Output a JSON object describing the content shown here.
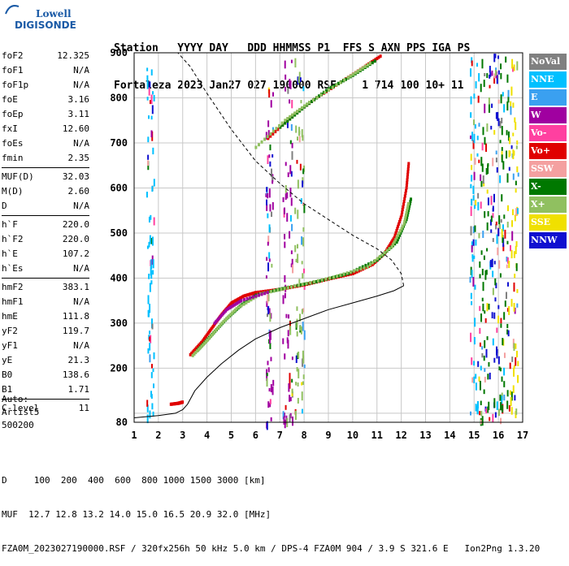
{
  "logo": {
    "line1": "Lowell",
    "line2": "DIGISONDE"
  },
  "header": {
    "line1": "Station   YYYY DAY   DDD HHMMSS P1  FFS S AXN PPS IGA PS",
    "line2": "Fortaleza 2023 Jan27 027 190000 RSF    1 714 100 10+ 11"
  },
  "params": {
    "group1": [
      {
        "name": "foF2",
        "value": "12.325"
      },
      {
        "name": "foF1",
        "value": "N/A"
      },
      {
        "name": "foF1p",
        "value": "N/A"
      },
      {
        "name": "foE",
        "value": "3.16"
      },
      {
        "name": "foEp",
        "value": "3.11"
      },
      {
        "name": "fxI",
        "value": "12.60"
      },
      {
        "name": "foEs",
        "value": "N/A"
      },
      {
        "name": "fmin",
        "value": "2.35"
      }
    ],
    "group2": [
      {
        "name": "MUF(D)",
        "value": "32.03"
      },
      {
        "name": "M(D)",
        "value": "2.60"
      },
      {
        "name": "D",
        "value": "N/A"
      }
    ],
    "group3": [
      {
        "name": "h`F",
        "value": "220.0"
      },
      {
        "name": "h`F2",
        "value": "220.0"
      },
      {
        "name": "h`E",
        "value": "107.2"
      },
      {
        "name": "h`Es",
        "value": "N/A"
      }
    ],
    "group4": [
      {
        "name": "hmF2",
        "value": "383.1"
      },
      {
        "name": "hmF1",
        "value": "N/A"
      },
      {
        "name": "hmE",
        "value": "111.8"
      },
      {
        "name": "yF2",
        "value": "119.7"
      },
      {
        "name": "yF1",
        "value": "N/A"
      },
      {
        "name": "yE",
        "value": "21.3"
      },
      {
        "name": "B0",
        "value": "138.6"
      },
      {
        "name": "B1",
        "value": "1.71"
      }
    ],
    "group5": [
      {
        "name": "C-level",
        "value": "11"
      }
    ]
  },
  "auto": {
    "line1": "Auto:",
    "line2": "Artist5",
    "line3": "500200"
  },
  "legend": [
    {
      "label": "NoVal",
      "color": "#808080"
    },
    {
      "label": "NNE",
      "color": "#00c0ff"
    },
    {
      "label": "E",
      "color": "#3aa0f0"
    },
    {
      "label": "W",
      "color": "#a000a0"
    },
    {
      "label": "Vo-",
      "color": "#ff40a0"
    },
    {
      "label": "Vo+",
      "color": "#e00000"
    },
    {
      "label": "SSW",
      "color": "#f4a0a0"
    },
    {
      "label": "X-",
      "color": "#007800"
    },
    {
      "label": "X+",
      "color": "#90c060"
    },
    {
      "label": "SSE",
      "color": "#f0e000"
    },
    {
      "label": "NNW",
      "color": "#1010d0"
    }
  ],
  "footer": {
    "line1": "D     100  200  400  600  800 1000 1500 3000 [km]",
    "line2": "MUF  12.7 12.8 13.2 14.0 15.0 16.5 20.9 32.0 [MHz]",
    "line3": "FZA0M_2023027190000.RSF / 320fx256h 50 kHz 5.0 km / DPS-4 FZA0M 904 / 3.9 S 321.6 E   Ion2Png 1.3.20"
  },
  "chart_data": {
    "type": "scatter",
    "xlim": [
      1,
      17
    ],
    "ylim": [
      80,
      900
    ],
    "x_ticks": [
      1,
      2,
      3,
      4,
      5,
      6,
      7,
      8,
      9,
      10,
      11,
      12,
      13,
      14,
      15,
      16,
      17
    ],
    "y_ticks": [
      80,
      100,
      200,
      300,
      400,
      500,
      600,
      700,
      800,
      900
    ],
    "y_tick_labels": [
      "80",
      "",
      "200",
      "300",
      "400",
      "500",
      "600",
      "700",
      "800",
      "900"
    ],
    "grid": true,
    "series": [
      {
        "name": "Vo+",
        "color": "#e00000",
        "points": [
          [
            3.3,
            230
          ],
          [
            3.8,
            260
          ],
          [
            4.2,
            290
          ],
          [
            4.6,
            320
          ],
          [
            5.0,
            345
          ],
          [
            5.5,
            360
          ],
          [
            6.0,
            368
          ],
          [
            7.0,
            375
          ],
          [
            8.0,
            385
          ],
          [
            9.0,
            398
          ],
          [
            10.0,
            410
          ],
          [
            10.8,
            430
          ],
          [
            11.3,
            455
          ],
          [
            11.7,
            490
          ],
          [
            12.0,
            540
          ],
          [
            12.2,
            600
          ],
          [
            12.3,
            660
          ]
        ]
      },
      {
        "name": "X-",
        "color": "#007800",
        "points": [
          [
            3.6,
            240
          ],
          [
            4.2,
            275
          ],
          [
            4.8,
            310
          ],
          [
            5.4,
            340
          ],
          [
            6.0,
            362
          ],
          [
            7.2,
            378
          ],
          [
            8.5,
            392
          ],
          [
            9.8,
            410
          ],
          [
            11.0,
            440
          ],
          [
            11.8,
            480
          ],
          [
            12.2,
            530
          ],
          [
            12.4,
            580
          ]
        ]
      },
      {
        "name": "X+",
        "color": "#90c060",
        "points": [
          [
            3.4,
            228
          ],
          [
            4.0,
            262
          ],
          [
            4.6,
            300
          ],
          [
            5.2,
            332
          ],
          [
            6.2,
            365
          ],
          [
            7.6,
            382
          ],
          [
            9.2,
            402
          ],
          [
            10.6,
            425
          ],
          [
            11.6,
            470
          ],
          [
            12.1,
            520
          ],
          [
            12.3,
            570
          ]
        ]
      },
      {
        "name": "W",
        "color": "#a000a0",
        "points": [
          [
            4.3,
            300
          ],
          [
            4.8,
            330
          ],
          [
            5.4,
            350
          ],
          [
            6.6,
            370
          ]
        ]
      },
      {
        "name": "Vo+",
        "color": "#e00000",
        "points": [
          [
            2.5,
            120
          ],
          [
            2.8,
            122
          ],
          [
            3.0,
            125
          ]
        ]
      },
      {
        "name": "Vo+",
        "color": "#e00000",
        "points": [
          [
            6.5,
            710
          ],
          [
            7.5,
            760
          ],
          [
            8.5,
            800
          ],
          [
            9.5,
            835
          ],
          [
            10.5,
            870
          ],
          [
            11.2,
            895
          ]
        ]
      },
      {
        "name": "X-",
        "color": "#007800",
        "points": [
          [
            7.0,
            735
          ],
          [
            8.0,
            780
          ],
          [
            9.0,
            820
          ],
          [
            10.0,
            850
          ],
          [
            11.0,
            885
          ]
        ]
      },
      {
        "name": "X+",
        "color": "#90c060",
        "points": [
          [
            6.0,
            690
          ],
          [
            7.2,
            750
          ],
          [
            8.2,
            790
          ],
          [
            9.8,
            845
          ],
          [
            10.8,
            880
          ]
        ]
      }
    ],
    "profile": {
      "name": "electron density profile",
      "points": [
        [
          1.0,
          90
        ],
        [
          2.0,
          95
        ],
        [
          2.7,
          100
        ],
        [
          3.0,
          108
        ],
        [
          3.2,
          120
        ],
        [
          3.5,
          150
        ],
        [
          4.0,
          180
        ],
        [
          4.6,
          210
        ],
        [
          5.3,
          240
        ],
        [
          6.0,
          265
        ],
        [
          7.0,
          290
        ],
        [
          8.0,
          310
        ],
        [
          9.0,
          330
        ],
        [
          10.0,
          345
        ],
        [
          11.0,
          360
        ],
        [
          11.7,
          372
        ],
        [
          12.1,
          383
        ]
      ]
    },
    "topside": {
      "name": "topside profile (dashed)",
      "points": [
        [
          12.1,
          383
        ],
        [
          12.0,
          410
        ],
        [
          11.6,
          440
        ],
        [
          11.0,
          465
        ],
        [
          10.0,
          495
        ],
        [
          9.0,
          530
        ],
        [
          8.0,
          565
        ],
        [
          7.0,
          610
        ],
        [
          6.0,
          660
        ],
        [
          5.0,
          730
        ],
        [
          4.0,
          810
        ],
        [
          3.3,
          870
        ],
        [
          2.8,
          900
        ]
      ]
    }
  }
}
